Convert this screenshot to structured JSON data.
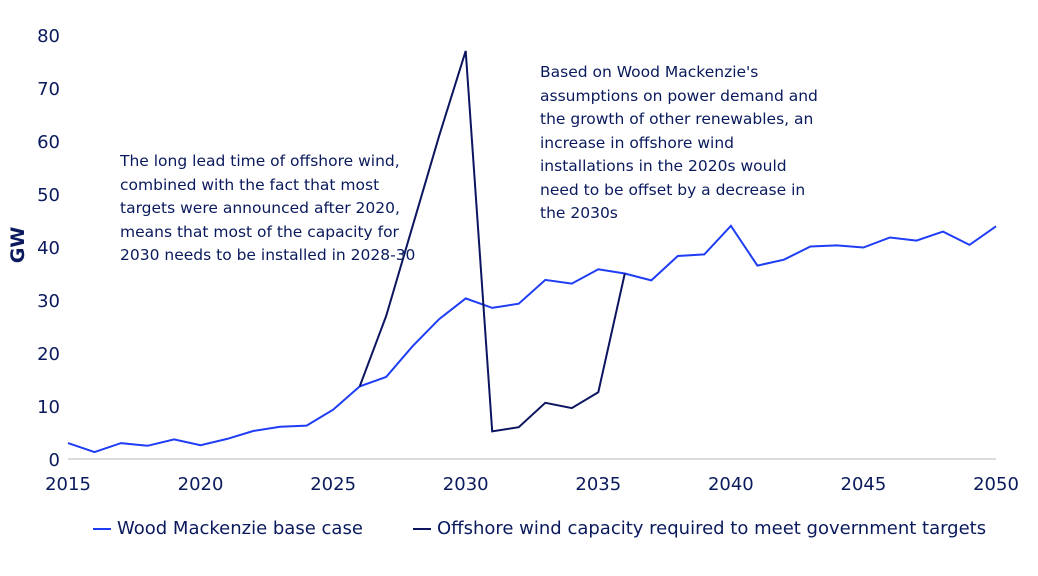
{
  "chart_data": {
    "type": "line",
    "xlabel": "",
    "ylabel": "GW",
    "xlim": [
      2015,
      2050
    ],
    "ylim": [
      0,
      80
    ],
    "xticks": [
      "2015",
      "2020",
      "2025",
      "2030",
      "2035",
      "2040",
      "2045",
      "2050"
    ],
    "yticks": [
      "0",
      "10",
      "20",
      "30",
      "40",
      "50",
      "60",
      "70",
      "80"
    ],
    "grid": false,
    "legend_position": "bottom",
    "series": [
      {
        "name": "Wood Mackenzie base case",
        "color": "#1f3df5",
        "x": [
          2015,
          2016,
          2017,
          2018,
          2019,
          2020,
          2021,
          2022,
          2023,
          2024,
          2025,
          2026,
          2027,
          2028,
          2029,
          2030,
          2031,
          2032,
          2033,
          2034,
          2035,
          2036,
          2037,
          2038,
          2039,
          2040,
          2041,
          2042,
          2043,
          2044,
          2045,
          2046,
          2047,
          2048,
          2049,
          2050
        ],
        "y": [
          3.0,
          1.3,
          3.0,
          2.5,
          3.7,
          2.6,
          3.8,
          5.3,
          6.1,
          6.3,
          9.3,
          13.7,
          15.5,
          21.3,
          26.4,
          30.3,
          28.5,
          29.3,
          33.8,
          33.1,
          35.8,
          35.0,
          33.7,
          38.3,
          38.6,
          44.0,
          36.5,
          37.6,
          40.1,
          40.3,
          39.9,
          41.8,
          41.2,
          42.9,
          40.4,
          43.9
        ]
      },
      {
        "name": "Offshore wind capacity required to meet government targets",
        "color": "#0b1560",
        "x": [
          2026,
          2027,
          2028,
          2029,
          2030,
          2031,
          2032,
          2033,
          2034,
          2035,
          2036
        ],
        "y": [
          13.7,
          27.0,
          44.0,
          61.0,
          77.0,
          5.2,
          6.0,
          10.6,
          9.6,
          12.6,
          35.0
        ]
      }
    ]
  },
  "annotations": {
    "left": "The long lead time of offshore wind, combined with the fact that most targets were announced after 2020, means that most of the capacity for 2030 needs to be installed in 2028-30",
    "right": "Based on Wood Mackenzie's assumptions on power demand and the growth of other renewables, an increase in offshore wind installations in the 2020s would need to be offset by a decrease in the 2030s"
  }
}
